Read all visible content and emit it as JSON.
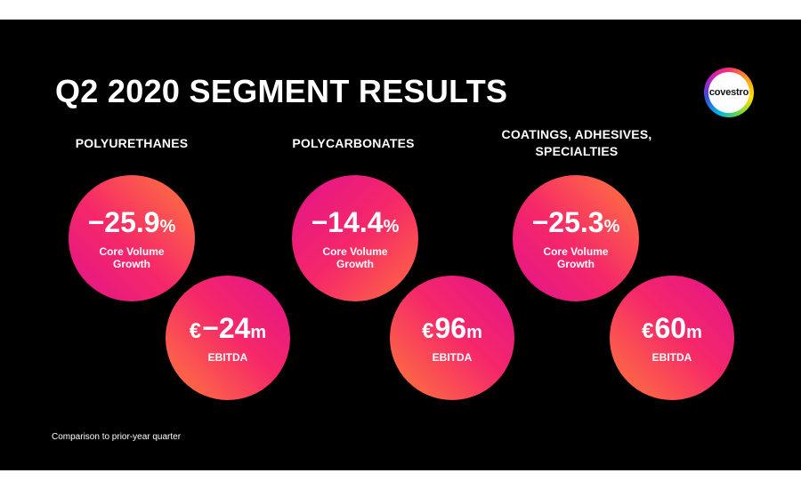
{
  "title": "Q2 2020 SEGMENT RESULTS",
  "logo_text": "covestro",
  "segments": [
    {
      "name_line1": "POLYURETHANES",
      "name_line2": "",
      "volume_value": "−25.9",
      "volume_unit": "%",
      "volume_label_line1": "Core Volume",
      "volume_label_line2": "Growth",
      "ebitda_currency": "€",
      "ebitda_value": "−24",
      "ebitda_unit": "m",
      "ebitda_label": "EBITDA"
    },
    {
      "name_line1": "POLYCARBONATES",
      "name_line2": "",
      "volume_value": "−14.4",
      "volume_unit": "%",
      "volume_label_line1": "Core Volume",
      "volume_label_line2": "Growth",
      "ebitda_currency": "€",
      "ebitda_value": "96",
      "ebitda_unit": "m",
      "ebitda_label": "EBITDA"
    },
    {
      "name_line1": "COATINGS, ADHESIVES,",
      "name_line2": "SPECIALTIES",
      "volume_value": "−25.3",
      "volume_unit": "%",
      "volume_label_line1": "Core Volume",
      "volume_label_line2": "Growth",
      "ebitda_currency": "€",
      "ebitda_value": "60",
      "ebitda_unit": "m",
      "ebitda_label": "EBITDA"
    }
  ],
  "footnote": "Comparison to prior-year quarter",
  "colors": {
    "background": "#000000",
    "accent_orange": "#ff7a3a",
    "accent_pink": "#e2148a"
  }
}
